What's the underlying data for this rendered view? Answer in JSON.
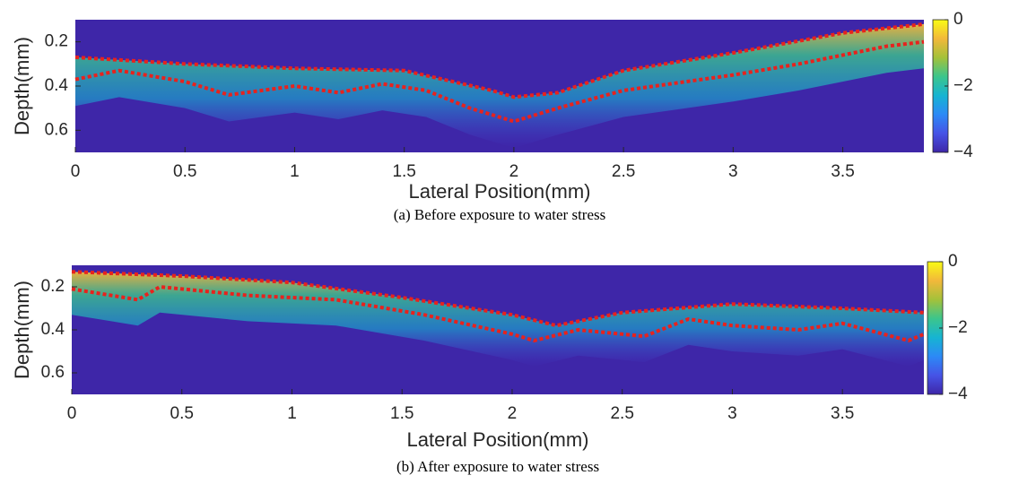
{
  "chart_data": [
    {
      "type": "heatmap",
      "caption": "(a) Before exposure to water stress",
      "xlabel": "Lateral Position(mm)",
      "ylabel": "Depth(mm)",
      "xlim": [
        0,
        3.87
      ],
      "xticks": [
        0,
        0.5,
        1,
        1.5,
        2,
        2.5,
        3,
        3.5
      ],
      "ylim": [
        0.1,
        0.7
      ],
      "yticks": [
        0.2,
        0.4,
        0.6
      ],
      "y_reversed": true,
      "clim": [
        -4,
        0
      ],
      "cticks": [
        0,
        {
          "value": -2,
          "label": "−2"
        },
        {
          "value": -4,
          "label": "−4"
        }
      ],
      "colormap": [
        "#3e26a8",
        "#4653e6",
        "#2c89f6",
        "#16b4d2",
        "#3cc58c",
        "#a4c13a",
        "#f2b83a",
        "#f9fb15"
      ],
      "series": [
        {
          "color": "#e8221d",
          "x": [
            0,
            0.5,
            1,
            1.5,
            1.9,
            2.0,
            2.2,
            2.5,
            3,
            3.5,
            3.87
          ],
          "values": [
            0.27,
            0.3,
            0.32,
            0.33,
            0.42,
            0.45,
            0.43,
            0.33,
            0.25,
            0.16,
            0.12
          ]
        },
        {
          "color": "#e8221d",
          "x": [
            0,
            0.2,
            0.5,
            0.7,
            1,
            1.2,
            1.4,
            1.6,
            1.8,
            2.0,
            2.2,
            2.5,
            3,
            3.3,
            3.7,
            3.87
          ],
          "values": [
            0.37,
            0.33,
            0.38,
            0.44,
            0.4,
            0.43,
            0.39,
            0.42,
            0.5,
            0.56,
            0.5,
            0.42,
            0.35,
            0.3,
            0.22,
            0.2
          ]
        }
      ]
    },
    {
      "type": "heatmap",
      "caption": "(b) After exposure to water stress",
      "xlabel": "Lateral Position(mm)",
      "ylabel": "Depth(mm)",
      "xlim": [
        0,
        3.87
      ],
      "xticks": [
        0,
        0.5,
        1,
        1.5,
        2,
        2.5,
        3,
        3.5
      ],
      "ylim": [
        0.1,
        0.7
      ],
      "yticks": [
        0.2,
        0.4,
        0.6
      ],
      "y_reversed": true,
      "clim": [
        -4,
        0
      ],
      "cticks": [
        0,
        {
          "value": -2,
          "label": "−2"
        },
        {
          "value": -4,
          "label": "−4"
        }
      ],
      "colormap": [
        "#3e26a8",
        "#4653e6",
        "#2c89f6",
        "#16b4d2",
        "#3cc58c",
        "#a4c13a",
        "#f2b83a",
        "#f9fb15"
      ],
      "series": [
        {
          "color": "#e8221d",
          "x": [
            0,
            0.5,
            1,
            1.5,
            2,
            2.2,
            2.5,
            3,
            3.5,
            3.87
          ],
          "values": [
            0.13,
            0.15,
            0.18,
            0.25,
            0.33,
            0.38,
            0.32,
            0.28,
            0.3,
            0.32
          ]
        },
        {
          "color": "#e8221d",
          "x": [
            0,
            0.3,
            0.4,
            0.8,
            1.2,
            1.6,
            2.0,
            2.1,
            2.3,
            2.6,
            2.8,
            3.0,
            3.3,
            3.5,
            3.8,
            3.87
          ],
          "values": [
            0.21,
            0.26,
            0.2,
            0.24,
            0.26,
            0.33,
            0.42,
            0.45,
            0.4,
            0.43,
            0.35,
            0.38,
            0.4,
            0.37,
            0.45,
            0.42
          ]
        }
      ]
    }
  ]
}
